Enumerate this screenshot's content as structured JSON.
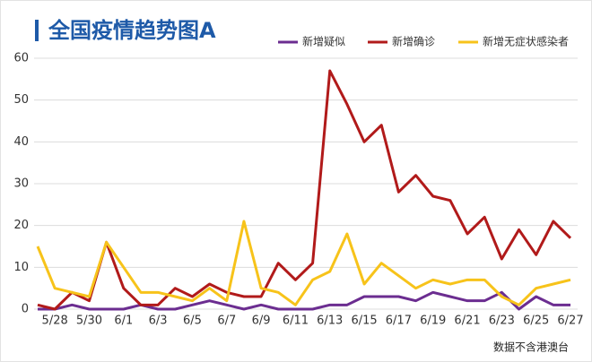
{
  "chart_data": {
    "type": "line",
    "title": "全国疫情趋势图A",
    "note": "数据不含港澳台",
    "categories": [
      null,
      "5/28",
      null,
      "5/30",
      null,
      "6/1",
      null,
      "6/3",
      null,
      "6/5",
      null,
      "6/7",
      null,
      "6/9",
      null,
      "6/11",
      null,
      "6/13",
      null,
      "6/15",
      null,
      "6/17",
      null,
      "6/19",
      null,
      "6/21",
      null,
      "6/23",
      null,
      "6/25",
      null,
      "6/27"
    ],
    "series": [
      {
        "name": "新增疑似",
        "color": "#6b2d90",
        "values": [
          0,
          0,
          1,
          0,
          0,
          0,
          1,
          0,
          0,
          1,
          2,
          1,
          0,
          1,
          0,
          0,
          0,
          1,
          1,
          3,
          3,
          3,
          2,
          4,
          3,
          2,
          2,
          4,
          0,
          3,
          1,
          1
        ]
      },
      {
        "name": "新增确诊",
        "color": "#b11a1a",
        "values": [
          1,
          0,
          4,
          2,
          16,
          5,
          1,
          1,
          5,
          3,
          6,
          4,
          3,
          3,
          11,
          7,
          11,
          57,
          49,
          40,
          44,
          28,
          32,
          27,
          26,
          18,
          22,
          12,
          19,
          13,
          21,
          17
        ]
      },
      {
        "name": "新增无症状感染者",
        "color": "#f7c31a",
        "values": [
          15,
          5,
          4,
          3,
          16,
          10,
          4,
          4,
          3,
          2,
          5,
          2,
          21,
          5,
          4,
          1,
          7,
          9,
          18,
          6,
          11,
          8,
          5,
          7,
          6,
          7,
          7,
          3,
          1,
          5,
          6,
          7
        ]
      }
    ],
    "ylim": [
      0,
      60
    ],
    "yticks": [
      0,
      10,
      20,
      30,
      40,
      50,
      60
    ],
    "grid": true
  }
}
